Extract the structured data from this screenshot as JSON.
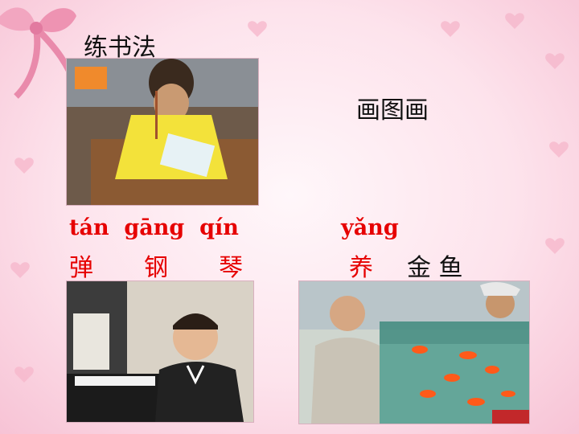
{
  "labels": {
    "calligraphy": "练书法",
    "drawing": "画图画",
    "pinyin_piano": "tán  gāng  qín",
    "hanzi_piano": "弹  钢  琴",
    "pinyin_fish": "yǎng",
    "hanzi_raise": "养",
    "hanzi_goldfish": "金 鱼"
  },
  "images": {
    "calligraphy_photo": "girl practicing calligraphy",
    "piano_photo": "boy playing piano",
    "goldfish_photo": "men looking at goldfish tank"
  },
  "colors": {
    "pinyin_red": "#e60000",
    "text_black": "#111111",
    "bg_pink": "#fde3ec"
  }
}
